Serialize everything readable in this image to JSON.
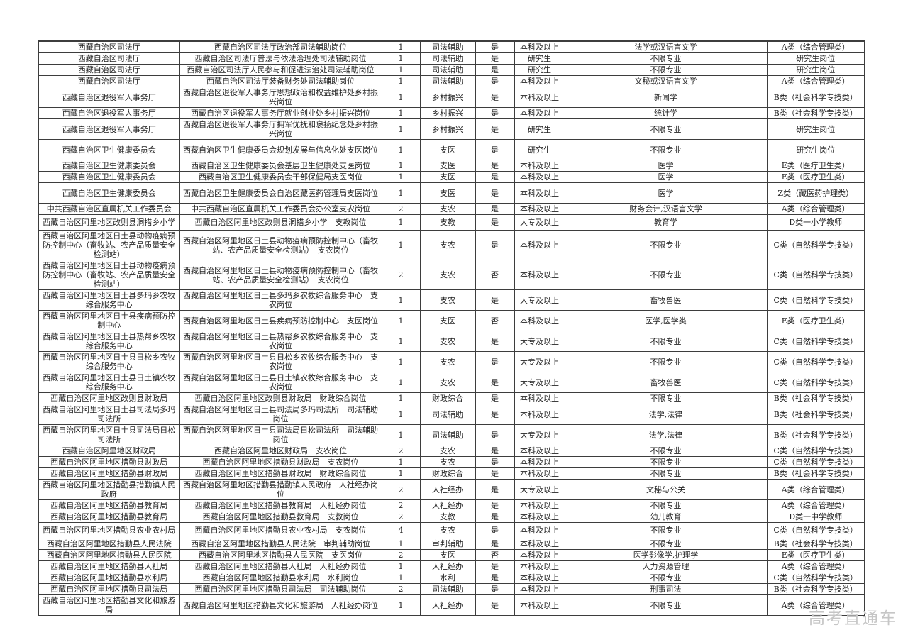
{
  "watermark": "高考直通车",
  "colors": {
    "background": "#ffffff",
    "table_border": "#3d3d3d",
    "text": "#232323",
    "watermark_gray": "#c6c6c6"
  },
  "table": {
    "column_keys": [
      "unit",
      "position_name",
      "openings",
      "post_type",
      "targeted_flag",
      "education",
      "major",
      "exam_category"
    ],
    "rows": [
      [
        "西藏自治区司法厅",
        "西藏自治区司法厅政治部司法辅助岗位",
        "1",
        "司法辅助",
        "是",
        "本科及以上",
        "法学或汉语言文学",
        "A类（综合管理类）"
      ],
      [
        "西藏自治区司法厅",
        "西藏自治区司法厅普法与依法治理处司法辅助岗位",
        "1",
        "司法辅助",
        "是",
        "研究生",
        "不限专业",
        "研究生岗位"
      ],
      [
        "西藏自治区司法厅",
        "西藏自治区司法厅人民参与和促进法治处司法辅助岗位",
        "1",
        "司法辅助",
        "是",
        "研究生",
        "不限专业",
        "研究生岗位"
      ],
      [
        "西藏自治区司法厅",
        "西藏自治区司法厅装备财务处司法辅助岗位",
        "1",
        "司法辅助",
        "是",
        "本科及以上",
        "文秘或汉语言文学",
        "A类（综合管理类）"
      ],
      [
        "西藏自治区退役军人事务厅",
        "西藏自治区退役军人事务厅思想政治和权益维护处乡村振兴岗位",
        "1",
        "乡村振兴",
        "是",
        "本科及以上",
        "新闻学",
        "B类（社会科学专技类）"
      ],
      [
        "西藏自治区退役军人事务厅",
        "西藏自治区退役军人事务厅就业创业处乡村振兴岗位",
        "1",
        "乡村振兴",
        "是",
        "本科及以上",
        "统计学",
        "B类（社会科学专技类）"
      ],
      [
        "西藏自治区退役军人事务厅",
        "西藏自治区退役军人事务厅拥军优抚和褒扬纪念处乡村振兴岗位",
        "1",
        "乡村振兴",
        "是",
        "研究生",
        "不限专业",
        "研究生岗位"
      ],
      [
        "西藏自治区卫生健康委员会",
        "西藏自治区卫生健康委员会规划发展与信息化处支医岗位",
        "1",
        "支医",
        "是",
        "研究生",
        "不限专业",
        "研究生岗位"
      ],
      [
        "西藏自治区卫生健康委员会",
        "西藏自治区卫生健康委员会基层卫生健康处支医岗位",
        "1",
        "支医",
        "是",
        "本科及以上",
        "医学",
        "E类（医疗卫生类）"
      ],
      [
        "西藏自治区卫生健康委员会",
        "西藏自治区卫生健康委员会干部保健局支医岗位",
        "1",
        "支医",
        "是",
        "本科及以上",
        "医学",
        "E类（医疗卫生类）"
      ],
      [
        "西藏自治区卫生健康委员会",
        "西藏自治区卫生健康委员会自治区藏医药管理局支医岗位",
        "1",
        "支医",
        "是",
        "本科及以上",
        "医学",
        "Z类（藏医药护理类）"
      ],
      [
        "中共西藏自治区直属机关工作委员会",
        "中共西藏自治区直属机关工作委员会办公室支农岗位",
        "2",
        "支农",
        "是",
        "本科及以上",
        "财务会计,汉语言文学",
        "A类（综合管理类）"
      ],
      [
        "西藏自治区阿里地区改则县洞措乡小学",
        "西藏自治区阿里地区改则县洞措乡小学　支教岗位",
        "1",
        "支教",
        "是",
        "大专及以上",
        "教育学",
        "D类一小学教师"
      ],
      [
        "西藏自治区阿里地区日土县动物疫病预防控制中心（畜牧站、农产品质量安全检测站）",
        "西藏自治区阿里地区日土县动物疫病预防控制中心（畜牧站、农产品质量安全检测站）　支农岗位",
        "1",
        "支农",
        "是",
        "本科及以上",
        "不限专业",
        "C类（自然科学专技类）"
      ],
      [
        "西藏自治区阿里地区日土县动物疫病预防控制中心（畜牧站、农产品质量安全检测站）",
        "西藏自治区阿里地区日土县动物疫病预防控制中心（畜牧站、农产品质量安全检测站）　支农岗位",
        "2",
        "支农",
        "否",
        "本科及以上",
        "不限专业",
        "C类（自然科学专技类）"
      ],
      [
        "西藏自治区阿里地区日土县多玛乡农牧综合服务中心",
        "西藏自治区阿里地区日土县多玛乡农牧综合服务中心　支农岗位",
        "1",
        "支农",
        "是",
        "大专及以上",
        "畜牧兽医",
        "C类（自然科学专技类）"
      ],
      [
        "西藏自治区阿里地区日土县疾病预防控制中心",
        "西藏自治区阿里地区日土县疾病预防控制中心　支医岗位",
        "1",
        "支医",
        "否",
        "本科及以上",
        "医学,医学类",
        "E类（医疗卫生类）"
      ],
      [
        "西藏自治区阿里地区日土县热帮乡农牧综合服务中心",
        "西藏自治区阿里地区日土县热帮乡农牧综合服务中心　支农岗位",
        "1",
        "支农",
        "是",
        "大专及以上",
        "不限专业",
        "C类（自然科学专技类）"
      ],
      [
        "西藏自治区阿里地区日土县日松乡农牧综合服务中心",
        "西藏自治区阿里地区日土县日松乡农牧综合服务中心　支农岗位",
        "1",
        "支农",
        "是",
        "大专及以上",
        "不限专业",
        "C类（自然科学专技类）"
      ],
      [
        "西藏自治区阿里地区日土县日土镇农牧综合服务中心",
        "西藏自治区阿里地区日土县日土镇农牧综合服务中心　支农岗位",
        "1",
        "支农",
        "是",
        "大专及以上",
        "畜牧兽医",
        "C类（自然科学专技类）"
      ],
      [
        "西藏自治区阿里地区改则县财政局",
        "西藏自治区阿里地区改则县财政局　财政综合岗位",
        "1",
        "财政综合",
        "是",
        "本科及以上",
        "不限专业",
        "B类（社会科学专技类）"
      ],
      [
        "西藏自治区阿里地区日土县司法局多玛司法所",
        "西藏自治区阿里地区日土县司法局多玛司法所　司法辅助岗位",
        "1",
        "司法辅助",
        "是",
        "本科及以上",
        "法学,法律",
        "B类（社会科学专技类）"
      ],
      [
        "西藏自治区阿里地区日土县司法局日松司法所",
        "西藏自治区阿里地区日土县司法局日松司法所　司法辅助岗位",
        "1",
        "司法辅助",
        "是",
        "大专及以上",
        "法学,法律",
        "B类（社会科学专技类）"
      ],
      [
        "西藏自治区阿里地区财政局",
        "西藏自治区阿里地区财政局　支农岗位",
        "2",
        "支农",
        "是",
        "本科及以上",
        "不限专业",
        "C类（自然科学专技类）"
      ],
      [
        "西藏自治区阿里地区措勤县财政局",
        "西藏自治区阿里地区措勤县财政局　支农岗位",
        "1",
        "支农",
        "是",
        "本科及以上",
        "不限专业",
        "C类（自然科学专技类）"
      ],
      [
        "西藏自治区阿里地区措勤县财政局",
        "西藏自治区阿里地区措勤县财政局　财政综合岗位",
        "1",
        "财政综合",
        "是",
        "本科及以上",
        "不限专业",
        "B类（社会科学专技类）"
      ],
      [
        "西藏自治区阿里地区措勤县措勤镇人民政府",
        "西藏自治区阿里地区措勤县措勤镇人民政府　人社经办岗位",
        "2",
        "人社经办",
        "是",
        "大专及以上",
        "文秘与公关",
        "A类（综合管理类）"
      ],
      [
        "西藏自治区阿里地区措勤县教育局",
        "西藏自治区阿里地区措勤县教育局　人社经办岗位",
        "2",
        "人社经办",
        "是",
        "本科及以上",
        "不限专业",
        "A类（综合管理类）"
      ],
      [
        "西藏自治区阿里地区措勤县教育局",
        "西藏自治区阿里地区措勤县教育局　支教岗位",
        "2",
        "支教",
        "是",
        "本科及以上",
        "幼儿教育",
        "D类一中学教师"
      ],
      [
        "西藏自治区阿里地区措勤县农业农村局",
        "西藏自治区阿里地区措勤县农业农村局　支农岗位",
        "4",
        "支农",
        "是",
        "本科及以上",
        "不限专业",
        "C类（自然科学专技类）"
      ],
      [
        "西藏自治区阿里地区措勤县人民法院",
        "西藏自治区阿里地区措勤县人民法院　审判辅助岗位",
        "1",
        "审判辅助",
        "是",
        "本科及以上",
        "不限专业",
        "B类（社会科学专技类）"
      ],
      [
        "西藏自治区阿里地区措勤县人民医院",
        "西藏自治区阿里地区措勤县人民医院　支医岗位",
        "2",
        "支医",
        "否",
        "本科及以上",
        "医学影像学,护理学",
        "E类（医疗卫生类）"
      ],
      [
        "西藏自治区阿里地区措勤县人社局",
        "西藏自治区阿里地区措勤县人社局　人社经办岗位",
        "1",
        "人社经办",
        "是",
        "本科及以上",
        "人力资源管理",
        "A类（综合管理类）"
      ],
      [
        "西藏自治区阿里地区措勤县水利局",
        "西藏自治区阿里地区措勤县水利局　水利岗位",
        "1",
        "水利",
        "是",
        "本科及以上",
        "不限专业",
        "C类（自然科学专技类）"
      ],
      [
        "西藏自治区阿里地区措勤县司法局",
        "西藏自治区阿里地区措勤县司法局　司法辅助岗位",
        "2",
        "司法辅助",
        "是",
        "本科及以上",
        "刑事司法",
        "B类（社会科学专技类）"
      ],
      [
        "西藏自治区阿里地区措勤县文化和旅游局",
        "西藏自治区阿里地区措勤县文化和旅游局　人社经办岗位",
        "1",
        "人社经办",
        "是",
        "本科及以上",
        "不限专业",
        "A类（综合管理类）"
      ]
    ]
  }
}
